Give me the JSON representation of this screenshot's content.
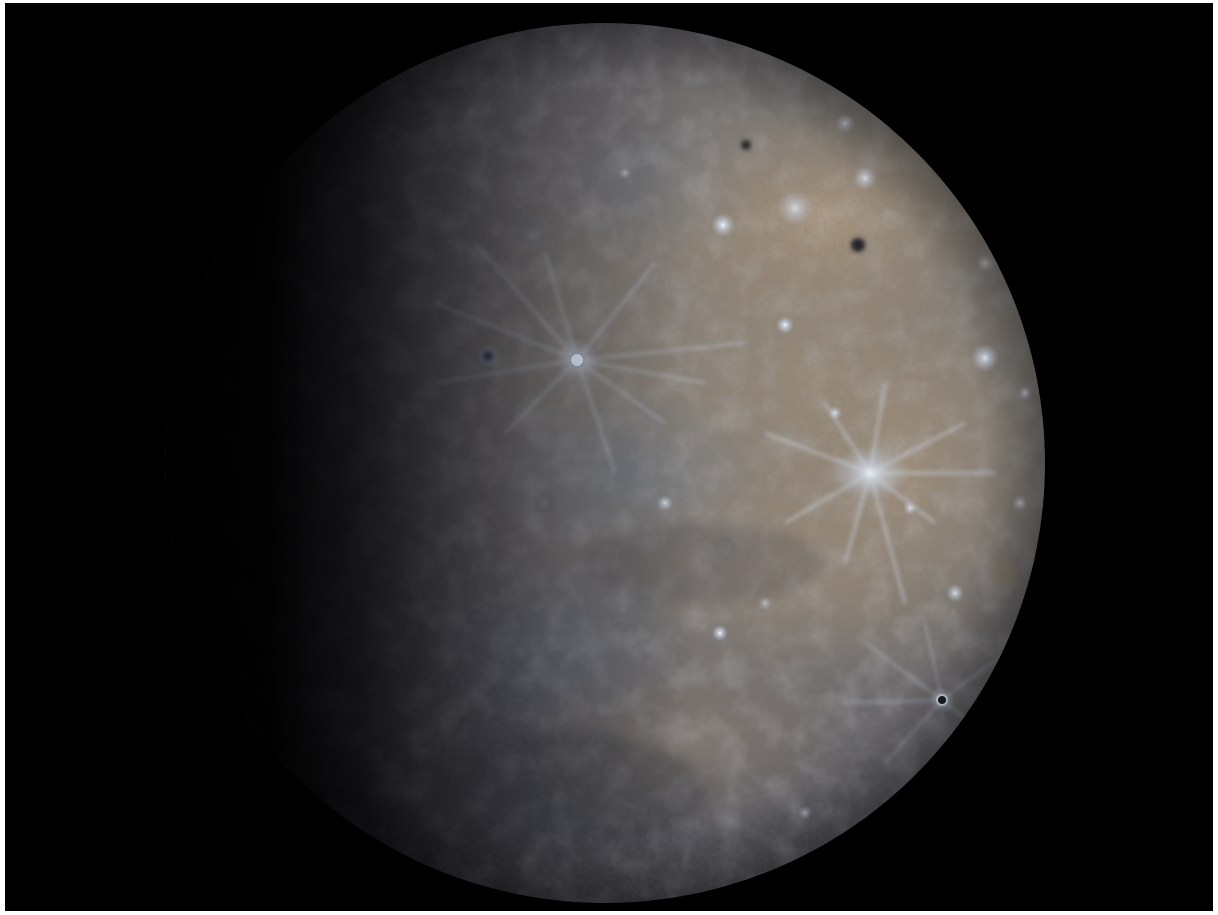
{
  "scene": {
    "subject": "planet",
    "subject_icon": "planet-icon",
    "colors": {
      "background": "#000000",
      "frame_border": "#ffffff",
      "surface_lit_warm": "#9c8a76",
      "surface_lit_cool": "#7d8187",
      "surface_mid": "#5f5f63",
      "shadow": "#08080a",
      "bright_ray_crater": "#e8f0ff",
      "dark_spot": "#2a2a2c"
    }
  }
}
